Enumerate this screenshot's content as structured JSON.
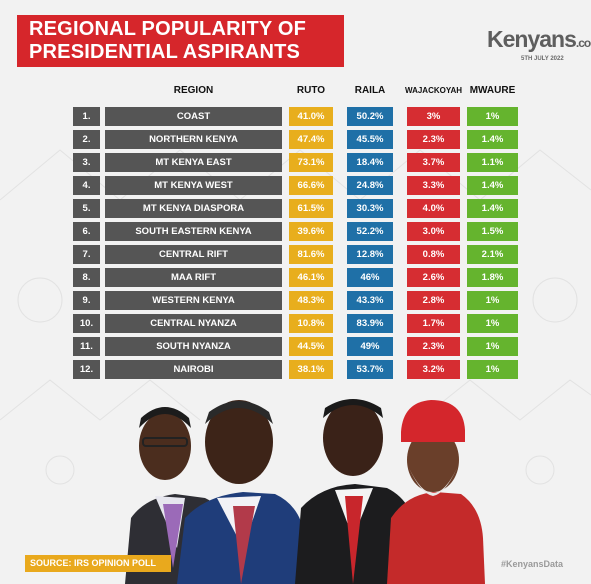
{
  "title_lines": [
    "REGIONAL POPULARITY OF",
    "PRESIDENTIAL ASPIRANTS"
  ],
  "brand": {
    "name": "Kenyans",
    "tld": ".co.ke",
    "date": "5TH JULY 2022"
  },
  "source": "SOURCE: IRS OPINION POLL",
  "hashtag": "#KenyansData",
  "colors": {
    "ruto": "#e8ae1d",
    "raila": "#1f70a7",
    "wajackoyah": "#d62d32",
    "mwaure": "#65b42e",
    "region": "#555555",
    "title": "#d6262b"
  },
  "chart_data": {
    "type": "table",
    "columns": [
      "REGION",
      "RUTO",
      "RAILA",
      "WAJACKOYAH",
      "MWAURE"
    ],
    "rows": [
      {
        "num": "1.",
        "region": "COAST",
        "ruto": "41.0%",
        "raila": "50.2%",
        "wajackoyah": "3%",
        "mwaure": "1%"
      },
      {
        "num": "2.",
        "region": "NORTHERN KENYA",
        "ruto": "47.4%",
        "raila": "45.5%",
        "wajackoyah": "2.3%",
        "mwaure": "1.4%"
      },
      {
        "num": "3.",
        "region": "MT KENYA EAST",
        "ruto": "73.1%",
        "raila": "18.4%",
        "wajackoyah": "3.7%",
        "mwaure": "1.1%"
      },
      {
        "num": "4.",
        "region": "MT KENYA WEST",
        "ruto": "66.6%",
        "raila": "24.8%",
        "wajackoyah": "3.3%",
        "mwaure": "1.4%"
      },
      {
        "num": "5.",
        "region": "MT KENYA DIASPORA",
        "ruto": "61.5%",
        "raila": "30.3%",
        "wajackoyah": "4.0%",
        "mwaure": "1.4%"
      },
      {
        "num": "6.",
        "region": "SOUTH EASTERN KENYA",
        "ruto": "39.6%",
        "raila": "52.2%",
        "wajackoyah": "3.0%",
        "mwaure": "1.5%"
      },
      {
        "num": "7.",
        "region": "CENTRAL RIFT",
        "ruto": "81.6%",
        "raila": "12.8%",
        "wajackoyah": "0.8%",
        "mwaure": "2.1%"
      },
      {
        "num": "8.",
        "region": "MAA RIFT",
        "ruto": "46.1%",
        "raila": "46%",
        "wajackoyah": "2.6%",
        "mwaure": "1.8%"
      },
      {
        "num": "9.",
        "region": "WESTERN KENYA",
        "ruto": "48.3%",
        "raila": "43.3%",
        "wajackoyah": "2.8%",
        "mwaure": "1%"
      },
      {
        "num": "10.",
        "region": "CENTRAL NYANZA",
        "ruto": "10.8%",
        "raila": "83.9%",
        "wajackoyah": "1.7%",
        "mwaure": "1%"
      },
      {
        "num": "11.",
        "region": "SOUTH NYANZA",
        "ruto": "44.5%",
        "raila": "49%",
        "wajackoyah": "2.3%",
        "mwaure": "1%"
      },
      {
        "num": "12.",
        "region": "NAIROBI",
        "ruto": "38.1%",
        "raila": "53.7%",
        "wajackoyah": "3.2%",
        "mwaure": "1%"
      }
    ]
  }
}
